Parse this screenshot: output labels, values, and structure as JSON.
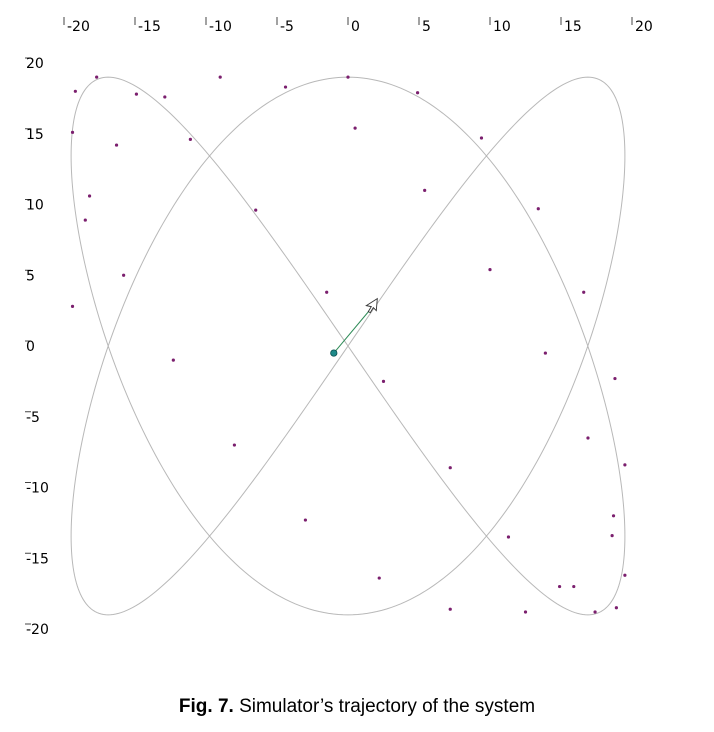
{
  "chart_data": {
    "type": "line",
    "title": "",
    "xlabel": "",
    "ylabel": "",
    "xlim": [
      -21,
      21
    ],
    "ylim": [
      -21,
      21
    ],
    "x_ticks": [
      -20,
      -15,
      -10,
      -5,
      0,
      5,
      10,
      15,
      20
    ],
    "y_ticks": [
      20,
      15,
      10,
      5,
      0,
      -5,
      -10,
      -15,
      -20
    ],
    "x_tick_labels": [
      "-20",
      "-15",
      "-10",
      "-5",
      "0",
      "5",
      "10",
      "15",
      "20"
    ],
    "y_tick_labels": [
      "20",
      "15",
      "10",
      "5",
      "0",
      "-5",
      "-10",
      "-15",
      "-20"
    ],
    "grid": false,
    "series": [
      {
        "kind": "trajectory-curve",
        "color": "#b8b8b8",
        "parametric": {
          "x": "19.5*sin(2t)",
          "y": "19.0*cos(3t)",
          "t": [
            0,
            6.2832
          ]
        }
      },
      {
        "kind": "trajectory-points",
        "color": "#7b1f6e",
        "x": [
          0.0,
          4.9,
          9.4,
          13.4,
          16.6,
          18.8,
          19.5,
          18.6,
          15.9,
          12.5,
          7.2,
          2.2,
          -3.0,
          -8.0,
          -12.3,
          -15.8,
          -18.2,
          -19.4,
          -19.2,
          -17.7,
          -14.9,
          -11.1,
          -6.5,
          -1.5,
          2.5,
          7.2,
          11.3,
          14.9,
          17.4,
          18.9,
          19.5,
          18.7,
          16.9,
          13.9,
          10.0,
          5.4,
          0.5,
          -4.4,
          -9.0,
          -12.9,
          -16.3,
          -18.5,
          -19.4
        ],
        "y": [
          19.0,
          17.9,
          14.7,
          9.7,
          3.8,
          -2.3,
          -8.4,
          -13.4,
          -17.0,
          -18.8,
          -18.6,
          -16.4,
          -12.3,
          -7.0,
          -1.0,
          5.0,
          10.6,
          15.1,
          18.0,
          19.0,
          17.8,
          14.6,
          9.6,
          3.8,
          -2.5,
          -8.6,
          -13.5,
          -17.0,
          -18.8,
          -18.5,
          -16.2,
          -12.0,
          -6.5,
          -0.5,
          5.4,
          11.0,
          15.4,
          18.3,
          19.0,
          17.6,
          14.2,
          8.9,
          2.8
        ]
      },
      {
        "kind": "current-position",
        "color": "#1f8a8a",
        "x": [
          -1.0
        ],
        "y": [
          -0.5
        ]
      }
    ],
    "heading_arrow": {
      "from": [
        -1.0,
        -0.5
      ],
      "to": [
        1.5,
        2.5
      ],
      "color": "#2e8b57"
    }
  },
  "figure": {
    "caption_label": "Fig. 7.",
    "caption_text": " Simulator’s trajectory of the system"
  }
}
